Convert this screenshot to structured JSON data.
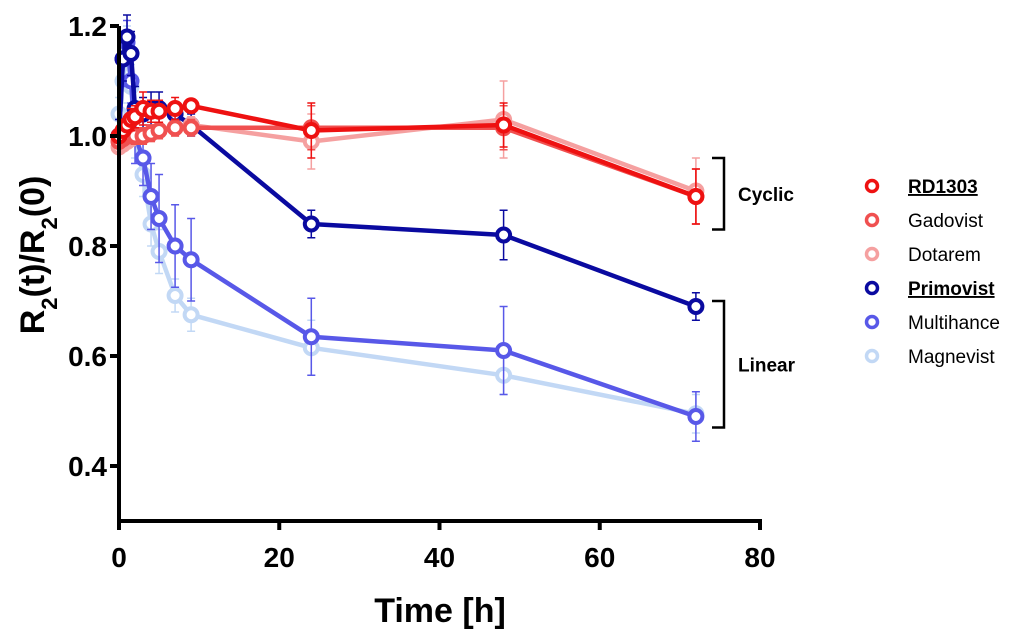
{
  "chart_data": {
    "type": "line",
    "title": "",
    "xlabel": "Time [h]",
    "ylabel_main": "R",
    "ylabel_sub": "2",
    "ylabel_part1": "(t)/R",
    "ylabel_part2": "(0)",
    "xlim": [
      0,
      80
    ],
    "ylim": [
      0.3,
      1.2
    ],
    "x_ticks": [
      0,
      20,
      40,
      60,
      80
    ],
    "x_tick_labels": [
      "0",
      "20",
      "40",
      "60",
      "80"
    ],
    "y_ticks": [
      0.4,
      0.6,
      0.8,
      1.0,
      1.2
    ],
    "y_tick_labels": [
      "0.4",
      "0.6",
      "0.8",
      "1.0",
      "1.2"
    ],
    "grid": false,
    "legend_position": "right",
    "groups": [
      {
        "label": "Cyclic",
        "y_range": [
          0.83,
          0.96
        ]
      },
      {
        "label": "Linear",
        "y_range": [
          0.47,
          0.7
        ]
      }
    ],
    "series": [
      {
        "name": "RD1303",
        "color": "#ee1111",
        "emphasis": true,
        "x": [
          0,
          0.5,
          1,
          1.5,
          2,
          3,
          4,
          5,
          7,
          9,
          24,
          48,
          72
        ],
        "y": [
          1.0,
          1.01,
          1.02,
          1.03,
          1.035,
          1.05,
          1.045,
          1.045,
          1.05,
          1.055,
          1.01,
          1.02,
          0.89
        ],
        "err": [
          0.01,
          0.015,
          0.015,
          0.02,
          0.02,
          0.03,
          0.02,
          0.02,
          0.02,
          0.01,
          0.05,
          0.04,
          0.05
        ]
      },
      {
        "name": "Gadovist",
        "color": "#f05050",
        "emphasis": false,
        "x": [
          0,
          0.5,
          1,
          1.5,
          2,
          3,
          4,
          5,
          7,
          9,
          24,
          48,
          72
        ],
        "y": [
          0.99,
          0.995,
          1.0,
          1.0,
          1.0,
          1.0,
          1.005,
          1.01,
          1.015,
          1.015,
          1.015,
          1.015,
          0.89
        ],
        "err": [
          0.01,
          0.01,
          0.01,
          0.01,
          0.015,
          0.015,
          0.015,
          0.015,
          0.015,
          0.015,
          0.04,
          0.04,
          0.05
        ]
      },
      {
        "name": "Dotarem",
        "color": "#f5a0a0",
        "emphasis": false,
        "x": [
          0,
          0.5,
          1,
          1.5,
          2,
          3,
          4,
          5,
          7,
          9,
          24,
          48,
          72
        ],
        "y": [
          0.98,
          0.985,
          0.99,
          0.995,
          1.0,
          1.0,
          1.005,
          1.01,
          1.015,
          1.02,
          0.99,
          1.03,
          0.9
        ],
        "err": [
          0.01,
          0.01,
          0.01,
          0.01,
          0.015,
          0.015,
          0.015,
          0.015,
          0.015,
          0.015,
          0.05,
          0.07,
          0.06
        ]
      },
      {
        "name": "Primovist",
        "color": "#0a0aa0",
        "emphasis": true,
        "x": [
          0,
          0.5,
          1,
          1.5,
          2,
          3,
          4,
          5,
          7,
          9,
          24,
          48,
          72
        ],
        "y": [
          1.0,
          1.14,
          1.18,
          1.15,
          1.05,
          1.04,
          1.05,
          1.05,
          1.04,
          1.02,
          0.84,
          0.82,
          0.69
        ],
        "err": [
          0.03,
          0.04,
          0.04,
          0.04,
          0.04,
          0.03,
          0.03,
          0.03,
          0.02,
          0.02,
          0.025,
          0.045,
          0.025
        ]
      },
      {
        "name": "Multihance",
        "color": "#5858e8",
        "emphasis": false,
        "x": [
          0,
          0.5,
          1,
          1.5,
          2,
          3,
          4,
          5,
          7,
          9,
          24,
          48,
          72
        ],
        "y": [
          1.0,
          1.14,
          1.17,
          1.1,
          1.0,
          0.96,
          0.89,
          0.85,
          0.8,
          0.775,
          0.635,
          0.61,
          0.49
        ],
        "err": [
          0.03,
          0.05,
          0.04,
          0.04,
          0.05,
          0.05,
          0.06,
          0.08,
          0.075,
          0.075,
          0.07,
          0.08,
          0.045
        ]
      },
      {
        "name": "Magnevist",
        "color": "#c2d8f5",
        "emphasis": false,
        "x": [
          0,
          0.5,
          1,
          1.5,
          2,
          3,
          4,
          5,
          7,
          9,
          24,
          48,
          72
        ],
        "y": [
          1.04,
          1.1,
          1.16,
          1.09,
          1.0,
          0.93,
          0.84,
          0.79,
          0.71,
          0.675,
          0.615,
          0.565,
          0.495
        ],
        "err": [
          0.03,
          0.04,
          0.04,
          0.04,
          0.04,
          0.04,
          0.04,
          0.04,
          0.03,
          0.03,
          0.05,
          0.035,
          0.035
        ]
      }
    ]
  }
}
